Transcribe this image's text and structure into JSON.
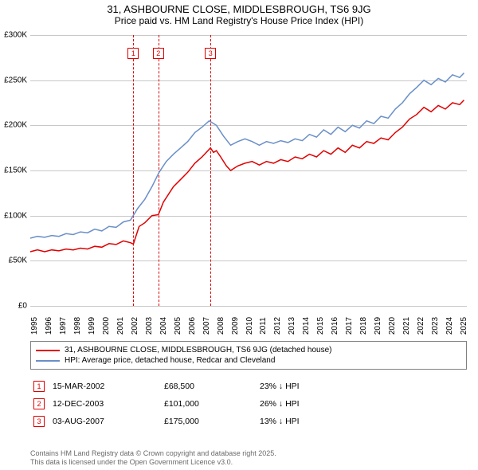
{
  "title": "31, ASHBOURNE CLOSE, MIDDLESBROUGH, TS6 9JG",
  "subtitle": "Price paid vs. HM Land Registry's House Price Index (HPI)",
  "chart": {
    "type": "line",
    "background_color": "#ffffff",
    "grid_color": "#c8c8c8",
    "axis_color": "#000000",
    "label_fontsize": 10,
    "ylim": [
      0,
      300000
    ],
    "ytick_step": 50000,
    "yticks": [
      {
        "v": 0,
        "label": "£0"
      },
      {
        "v": 50000,
        "label": "£50K"
      },
      {
        "v": 100000,
        "label": "£100K"
      },
      {
        "v": 150000,
        "label": "£150K"
      },
      {
        "v": 200000,
        "label": "£200K"
      },
      {
        "v": 250000,
        "label": "£250K"
      },
      {
        "v": 300000,
        "label": "£300K"
      }
    ],
    "xlim": [
      1995,
      2025.5
    ],
    "xticks": [
      1995,
      1996,
      1997,
      1998,
      1999,
      2000,
      2001,
      2002,
      2003,
      2004,
      2005,
      2006,
      2007,
      2008,
      2009,
      2010,
      2011,
      2012,
      2013,
      2014,
      2015,
      2016,
      2017,
      2018,
      2019,
      2020,
      2021,
      2022,
      2023,
      2024,
      2025
    ],
    "series": [
      {
        "name": "price_paid",
        "label": "31, ASHBOURNE CLOSE, MIDDLESBROUGH, TS6 9JG (detached house)",
        "color": "#e00000",
        "line_width": 1.5,
        "points": [
          [
            1995.0,
            60000
          ],
          [
            1995.5,
            62000
          ],
          [
            1996.0,
            60000
          ],
          [
            1996.5,
            62000
          ],
          [
            1997.0,
            61000
          ],
          [
            1997.5,
            63000
          ],
          [
            1998.0,
            62000
          ],
          [
            1998.5,
            64000
          ],
          [
            1999.0,
            63000
          ],
          [
            1999.5,
            66000
          ],
          [
            2000.0,
            65000
          ],
          [
            2000.5,
            69000
          ],
          [
            2001.0,
            68000
          ],
          [
            2001.5,
            72000
          ],
          [
            2002.0,
            70000
          ],
          [
            2002.2,
            68500
          ],
          [
            2002.6,
            88000
          ],
          [
            2003.0,
            92000
          ],
          [
            2003.5,
            100000
          ],
          [
            2003.95,
            101000
          ],
          [
            2004.3,
            115000
          ],
          [
            2005.0,
            132000
          ],
          [
            2005.5,
            140000
          ],
          [
            2006.0,
            148000
          ],
          [
            2006.5,
            158000
          ],
          [
            2007.0,
            165000
          ],
          [
            2007.59,
            175000
          ],
          [
            2007.8,
            170000
          ],
          [
            2008.0,
            172000
          ],
          [
            2008.3,
            165000
          ],
          [
            2008.7,
            155000
          ],
          [
            2009.0,
            150000
          ],
          [
            2009.5,
            155000
          ],
          [
            2010.0,
            158000
          ],
          [
            2010.5,
            160000
          ],
          [
            2011.0,
            156000
          ],
          [
            2011.5,
            160000
          ],
          [
            2012.0,
            158000
          ],
          [
            2012.5,
            162000
          ],
          [
            2013.0,
            160000
          ],
          [
            2013.5,
            165000
          ],
          [
            2014.0,
            163000
          ],
          [
            2014.5,
            168000
          ],
          [
            2015.0,
            165000
          ],
          [
            2015.5,
            172000
          ],
          [
            2016.0,
            168000
          ],
          [
            2016.5,
            175000
          ],
          [
            2017.0,
            170000
          ],
          [
            2017.5,
            178000
          ],
          [
            2018.0,
            175000
          ],
          [
            2018.5,
            182000
          ],
          [
            2019.0,
            180000
          ],
          [
            2019.5,
            186000
          ],
          [
            2020.0,
            184000
          ],
          [
            2020.5,
            192000
          ],
          [
            2021.0,
            198000
          ],
          [
            2021.5,
            207000
          ],
          [
            2022.0,
            212000
          ],
          [
            2022.5,
            220000
          ],
          [
            2023.0,
            215000
          ],
          [
            2023.5,
            222000
          ],
          [
            2024.0,
            218000
          ],
          [
            2024.5,
            225000
          ],
          [
            2025.0,
            223000
          ],
          [
            2025.3,
            228000
          ]
        ]
      },
      {
        "name": "hpi",
        "label": "HPI: Average price, detached house, Redcar and Cleveland",
        "color": "#6a8fc8",
        "line_width": 1.5,
        "points": [
          [
            1995.0,
            75000
          ],
          [
            1995.5,
            77000
          ],
          [
            1996.0,
            76000
          ],
          [
            1996.5,
            78000
          ],
          [
            1997.0,
            77000
          ],
          [
            1997.5,
            80000
          ],
          [
            1998.0,
            79000
          ],
          [
            1998.5,
            82000
          ],
          [
            1999.0,
            81000
          ],
          [
            1999.5,
            85000
          ],
          [
            2000.0,
            83000
          ],
          [
            2000.5,
            88000
          ],
          [
            2001.0,
            87000
          ],
          [
            2001.5,
            93000
          ],
          [
            2002.0,
            95000
          ],
          [
            2002.5,
            108000
          ],
          [
            2003.0,
            118000
          ],
          [
            2003.5,
            132000
          ],
          [
            2004.0,
            148000
          ],
          [
            2004.5,
            160000
          ],
          [
            2005.0,
            168000
          ],
          [
            2005.5,
            175000
          ],
          [
            2006.0,
            182000
          ],
          [
            2006.5,
            192000
          ],
          [
            2007.0,
            198000
          ],
          [
            2007.5,
            205000
          ],
          [
            2008.0,
            200000
          ],
          [
            2008.5,
            188000
          ],
          [
            2009.0,
            178000
          ],
          [
            2009.5,
            182000
          ],
          [
            2010.0,
            185000
          ],
          [
            2010.5,
            182000
          ],
          [
            2011.0,
            178000
          ],
          [
            2011.5,
            182000
          ],
          [
            2012.0,
            180000
          ],
          [
            2012.5,
            183000
          ],
          [
            2013.0,
            181000
          ],
          [
            2013.5,
            185000
          ],
          [
            2014.0,
            183000
          ],
          [
            2014.5,
            190000
          ],
          [
            2015.0,
            187000
          ],
          [
            2015.5,
            195000
          ],
          [
            2016.0,
            190000
          ],
          [
            2016.5,
            198000
          ],
          [
            2017.0,
            193000
          ],
          [
            2017.5,
            200000
          ],
          [
            2018.0,
            197000
          ],
          [
            2018.5,
            205000
          ],
          [
            2019.0,
            202000
          ],
          [
            2019.5,
            210000
          ],
          [
            2020.0,
            208000
          ],
          [
            2020.5,
            218000
          ],
          [
            2021.0,
            225000
          ],
          [
            2021.5,
            235000
          ],
          [
            2022.0,
            242000
          ],
          [
            2022.5,
            250000
          ],
          [
            2023.0,
            245000
          ],
          [
            2023.5,
            252000
          ],
          [
            2024.0,
            248000
          ],
          [
            2024.5,
            256000
          ],
          [
            2025.0,
            253000
          ],
          [
            2025.3,
            258000
          ]
        ]
      }
    ],
    "markers": [
      {
        "n": "1",
        "x": 2002.2,
        "color": "#e00000"
      },
      {
        "n": "2",
        "x": 2003.95,
        "color": "#e00000"
      },
      {
        "n": "3",
        "x": 2007.59,
        "color": "#e00000"
      }
    ]
  },
  "legend": {
    "border_color": "#808080",
    "items": [
      {
        "color": "#e00000",
        "label": "31, ASHBOURNE CLOSE, MIDDLESBROUGH, TS6 9JG (detached house)"
      },
      {
        "color": "#6a8fc8",
        "label": "HPI: Average price, detached house, Redcar and Cleveland"
      }
    ]
  },
  "transactions": [
    {
      "n": "1",
      "date": "15-MAR-2002",
      "price": "£68,500",
      "hpi": "23% ↓ HPI"
    },
    {
      "n": "2",
      "date": "12-DEC-2003",
      "price": "£101,000",
      "hpi": "26% ↓ HPI"
    },
    {
      "n": "3",
      "date": "03-AUG-2007",
      "price": "£175,000",
      "hpi": "13% ↓ HPI"
    }
  ],
  "footer": {
    "line1": "Contains HM Land Registry data © Crown copyright and database right 2025.",
    "line2": "This data is licensed under the Open Government Licence v3.0."
  },
  "colors": {
    "marker_border": "#e00000",
    "footer_text": "#6a6a6a"
  }
}
